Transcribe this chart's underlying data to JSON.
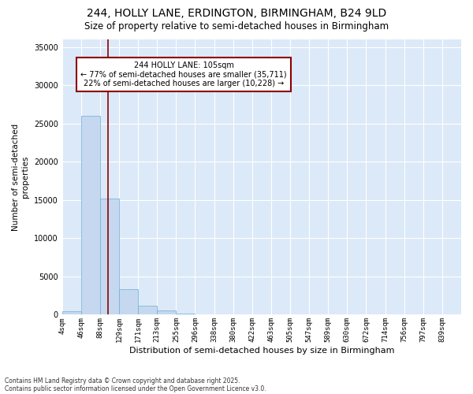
{
  "title_line1": "244, HOLLY LANE, ERDINGTON, BIRMINGHAM, B24 9LD",
  "title_line2": "Size of property relative to semi-detached houses in Birmingham",
  "xlabel": "Distribution of semi-detached houses by size in Birmingham",
  "ylabel": "Number of semi-detached\nproperties",
  "bin_labels": [
    "4sqm",
    "46sqm",
    "88sqm",
    "129sqm",
    "171sqm",
    "213sqm",
    "255sqm",
    "296sqm",
    "338sqm",
    "380sqm",
    "422sqm",
    "463sqm",
    "505sqm",
    "547sqm",
    "589sqm",
    "630sqm",
    "672sqm",
    "714sqm",
    "756sqm",
    "797sqm",
    "839sqm"
  ],
  "bar_heights": [
    500,
    26000,
    15200,
    3300,
    1200,
    600,
    150,
    80,
    50,
    30,
    20,
    15,
    10,
    8,
    5,
    4,
    3,
    2,
    2,
    1,
    1
  ],
  "bar_color": "#c5d8f0",
  "bar_edge_color": "#6aaed6",
  "property_sqm": 105,
  "pct_smaller": 77,
  "n_smaller": "35,711",
  "pct_larger": 22,
  "n_larger": "10,228",
  "ann_line1": "244 HOLLY LANE: 105sqm",
  "ann_line2": "← 77% of semi-detached houses are smaller (35,711)",
  "ann_line3": "22% of semi-detached houses are larger (10,228) →",
  "ylim": [
    0,
    36000
  ],
  "yticks": [
    0,
    5000,
    10000,
    15000,
    20000,
    25000,
    30000,
    35000
  ],
  "plot_bg_color": "#dce9f8",
  "fig_bg_color": "#ffffff",
  "grid_color": "#ffffff",
  "footer_line1": "Contains HM Land Registry data © Crown copyright and database right 2025.",
  "footer_line2": "Contains public sector information licensed under the Open Government Licence v3.0."
}
